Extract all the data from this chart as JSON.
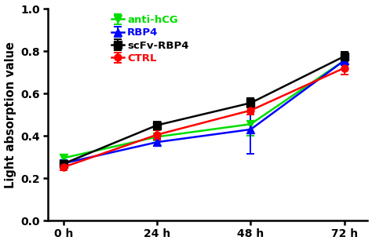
{
  "x": [
    0,
    24,
    48,
    72
  ],
  "x_labels": [
    "0 h",
    "24 h",
    "48 h",
    "72 h"
  ],
  "series": [
    {
      "label": "anti-hCG",
      "color": "#00dd00",
      "marker": "v",
      "y": [
        0.295,
        0.395,
        0.455,
        0.755
      ],
      "yerr": [
        0.018,
        0.018,
        0.055,
        0.018
      ]
    },
    {
      "label": "RBP4",
      "color": "#0000ff",
      "marker": "^",
      "y": [
        0.27,
        0.37,
        0.43,
        0.755
      ],
      "yerr": [
        0.015,
        0.018,
        0.115,
        0.022
      ]
    },
    {
      "label": "scFv-RBP4",
      "color": "#000000",
      "marker": "s",
      "y": [
        0.268,
        0.45,
        0.555,
        0.775
      ],
      "yerr": [
        0.015,
        0.018,
        0.022,
        0.022
      ]
    },
    {
      "label": "CTRL",
      "color": "#ff0000",
      "marker": "o",
      "y": [
        0.252,
        0.405,
        0.52,
        0.72
      ],
      "yerr": [
        0.014,
        0.022,
        0.018,
        0.03
      ]
    }
  ],
  "ylabel": "Light absorption value",
  "ylim": [
    0.0,
    1.0
  ],
  "yticks": [
    0.0,
    0.2,
    0.4,
    0.6,
    0.8,
    1.0
  ],
  "xlim": [
    -4,
    78
  ],
  "background_color": "#ffffff",
  "legend_fontsize": 9.5,
  "axis_fontsize": 10.5,
  "tick_fontsize": 10,
  "linewidth": 1.8,
  "markersize": 6.5,
  "capsize": 3.5,
  "elinewidth": 1.4,
  "capthick": 1.4
}
